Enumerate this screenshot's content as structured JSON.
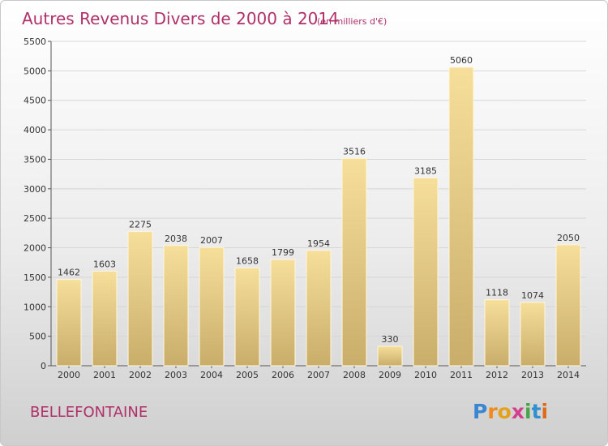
{
  "chart_data": {
    "type": "bar",
    "title": "Autres Revenus Divers de 2000 à 2014",
    "subtitle": "(en milliers d'€)",
    "categories": [
      "2000",
      "2001",
      "2002",
      "2003",
      "2004",
      "2005",
      "2006",
      "2007",
      "2008",
      "2009",
      "2010",
      "2011",
      "2012",
      "2013",
      "2014"
    ],
    "values": [
      1462,
      1603,
      2275,
      2038,
      2007,
      1658,
      1799,
      1954,
      3516,
      330,
      3185,
      5060,
      1118,
      1074,
      2050
    ],
    "ylim": [
      0,
      5500
    ],
    "yticks": [
      0,
      500,
      1000,
      1500,
      2000,
      2500,
      3000,
      3500,
      4000,
      4500,
      5000,
      5500
    ],
    "grid": true,
    "bar_color": "#e8cd87"
  },
  "footer": {
    "town": "BELLEFONTAINE",
    "brand": {
      "letters": [
        "P",
        "r",
        "o",
        "x",
        "i",
        "t",
        "i"
      ],
      "colors": [
        "#3a86d0",
        "#f08a1c",
        "#e4a21a",
        "#d43f8d",
        "#4aa548",
        "#2f8fd0",
        "#e06a1c"
      ]
    }
  }
}
